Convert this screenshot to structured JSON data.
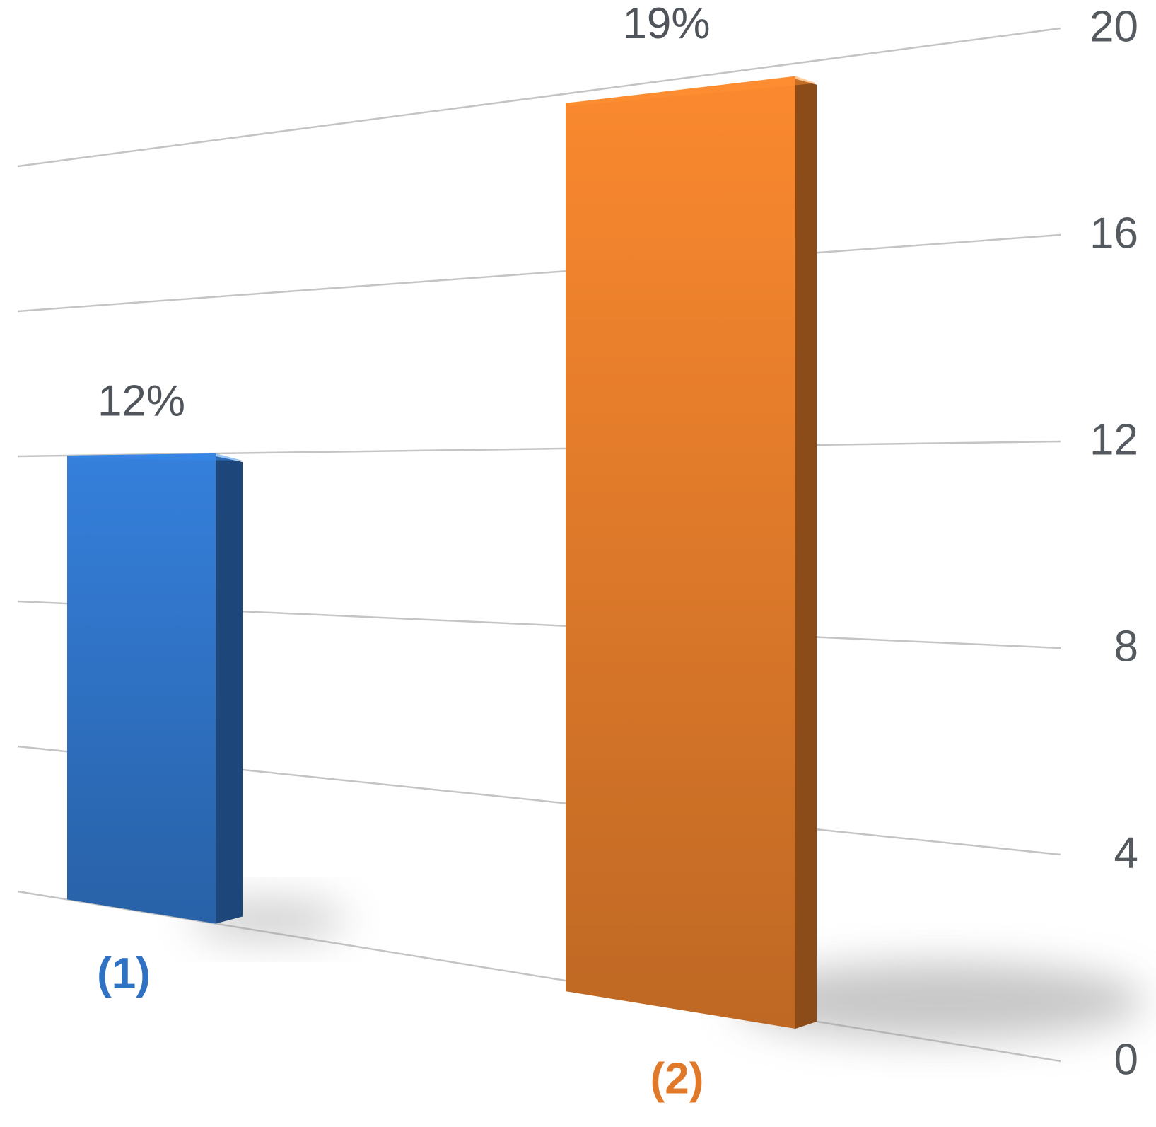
{
  "chart_data": {
    "type": "bar",
    "categories": [
      "(1)",
      "(2)"
    ],
    "values": [
      12,
      19
    ],
    "value_labels": [
      "12%",
      "19%"
    ],
    "colors": [
      "#2f72c4",
      "#e07a2a"
    ],
    "ylim": [
      0,
      20
    ],
    "yticks": [
      0,
      4,
      8,
      12,
      16,
      20
    ],
    "grid": true
  }
}
